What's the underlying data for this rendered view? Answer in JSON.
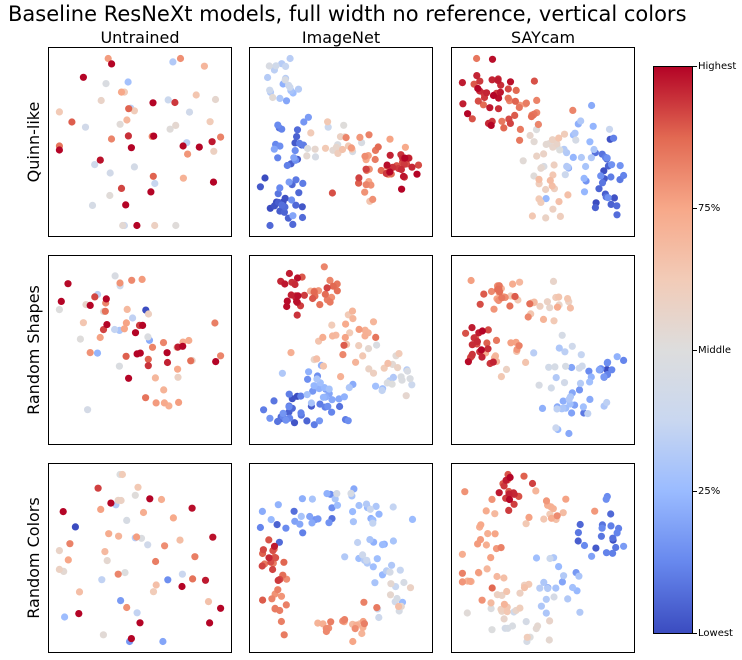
{
  "title": "Baseline ResNeXt models, full width no reference, vertical colors",
  "columns": [
    "Untrained",
    "ImageNet",
    "SAYcam"
  ],
  "rows": [
    "Quinn-like",
    "Random Shapes",
    "Random Colors"
  ],
  "colorbar": {
    "ticks": [
      {
        "label": "Highest",
        "value": 1.0
      },
      {
        "label": "75%",
        "value": 0.75
      },
      {
        "label": "Middle",
        "value": 0.5
      },
      {
        "label": "25%",
        "value": 0.25
      },
      {
        "label": "Lowest",
        "value": 0.0
      }
    ],
    "colormap": "coolwarm"
  },
  "chart_data": {
    "type": "scatter",
    "title": "Baseline ResNeXt models, full width no reference, vertical colors",
    "grid": false,
    "axes_ticks": "none",
    "colormap": "coolwarm",
    "colormap_stops": [
      "#3b4cc0",
      "#6788ee",
      "#9abbff",
      "#c9d7f0",
      "#dddddd",
      "#f2cbb7",
      "#f7a889",
      "#e26952",
      "#b40426"
    ],
    "color_value_range": [
      0,
      1
    ],
    "panels": [
      {
        "row": "Quinn-like",
        "column": "Untrained",
        "xlim": [
          0,
          1
        ],
        "ylim": [
          0,
          1
        ],
        "clusters": [
          {
            "x": 0.5,
            "y": 0.5,
            "sx": 0.3,
            "sy": 0.3,
            "n": 60,
            "v": 0.72,
            "vs": 0.25
          }
        ]
      },
      {
        "row": "Quinn-like",
        "column": "ImageNet",
        "xlim": [
          0,
          1
        ],
        "ylim": [
          0,
          1
        ],
        "clusters": [
          {
            "x": 0.15,
            "y": 0.85,
            "sx": 0.05,
            "sy": 0.08,
            "n": 20,
            "v": 0.35,
            "vs": 0.08
          },
          {
            "x": 0.2,
            "y": 0.42,
            "sx": 0.07,
            "sy": 0.15,
            "n": 30,
            "v": 0.12,
            "vs": 0.07
          },
          {
            "x": 0.15,
            "y": 0.13,
            "sx": 0.07,
            "sy": 0.05,
            "n": 18,
            "v": 0.04,
            "vs": 0.03
          },
          {
            "x": 0.5,
            "y": 0.47,
            "sx": 0.1,
            "sy": 0.07,
            "n": 25,
            "v": 0.55,
            "vs": 0.1
          },
          {
            "x": 0.72,
            "y": 0.33,
            "sx": 0.08,
            "sy": 0.08,
            "n": 25,
            "v": 0.82,
            "vs": 0.06
          },
          {
            "x": 0.88,
            "y": 0.36,
            "sx": 0.05,
            "sy": 0.05,
            "n": 22,
            "v": 0.95,
            "vs": 0.04
          }
        ]
      },
      {
        "row": "Quinn-like",
        "column": "SAYcam",
        "xlim": [
          0,
          1
        ],
        "ylim": [
          0,
          1
        ],
        "clusters": [
          {
            "x": 0.15,
            "y": 0.78,
            "sx": 0.08,
            "sy": 0.1,
            "n": 30,
            "v": 0.95,
            "vs": 0.04
          },
          {
            "x": 0.35,
            "y": 0.72,
            "sx": 0.1,
            "sy": 0.1,
            "n": 25,
            "v": 0.85,
            "vs": 0.06
          },
          {
            "x": 0.5,
            "y": 0.42,
            "sx": 0.08,
            "sy": 0.08,
            "n": 20,
            "v": 0.55,
            "vs": 0.06
          },
          {
            "x": 0.5,
            "y": 0.18,
            "sx": 0.07,
            "sy": 0.07,
            "n": 15,
            "v": 0.62,
            "vs": 0.04
          },
          {
            "x": 0.7,
            "y": 0.48,
            "sx": 0.08,
            "sy": 0.12,
            "n": 25,
            "v": 0.3,
            "vs": 0.06
          },
          {
            "x": 0.88,
            "y": 0.35,
            "sx": 0.06,
            "sy": 0.12,
            "n": 28,
            "v": 0.08,
            "vs": 0.05
          }
        ]
      },
      {
        "row": "Random Shapes",
        "column": "Untrained",
        "xlim": [
          0,
          1
        ],
        "ylim": [
          0,
          1
        ],
        "clusters": [
          {
            "x": 0.28,
            "y": 0.72,
            "sx": 0.16,
            "sy": 0.14,
            "n": 35,
            "v": 0.68,
            "vs": 0.28
          },
          {
            "x": 0.62,
            "y": 0.48,
            "sx": 0.2,
            "sy": 0.12,
            "n": 25,
            "v": 0.78,
            "vs": 0.2
          },
          {
            "x": 0.66,
            "y": 0.2,
            "sx": 0.07,
            "sy": 0.08,
            "n": 7,
            "v": 0.74,
            "vs": 0.1
          }
        ]
      },
      {
        "row": "Random Shapes",
        "column": "ImageNet",
        "xlim": [
          0,
          1
        ],
        "ylim": [
          0,
          1
        ],
        "clusters": [
          {
            "x": 0.22,
            "y": 0.82,
            "sx": 0.05,
            "sy": 0.07,
            "n": 16,
            "v": 0.97,
            "vs": 0.03
          },
          {
            "x": 0.4,
            "y": 0.85,
            "sx": 0.1,
            "sy": 0.06,
            "n": 20,
            "v": 0.85,
            "vs": 0.05
          },
          {
            "x": 0.5,
            "y": 0.58,
            "sx": 0.12,
            "sy": 0.08,
            "n": 28,
            "v": 0.7,
            "vs": 0.08
          },
          {
            "x": 0.78,
            "y": 0.48,
            "sx": 0.06,
            "sy": 0.06,
            "n": 10,
            "v": 0.58,
            "vs": 0.04
          },
          {
            "x": 0.82,
            "y": 0.32,
            "sx": 0.07,
            "sy": 0.06,
            "n": 12,
            "v": 0.4,
            "vs": 0.08
          },
          {
            "x": 0.42,
            "y": 0.27,
            "sx": 0.14,
            "sy": 0.06,
            "n": 25,
            "v": 0.2,
            "vs": 0.06
          },
          {
            "x": 0.15,
            "y": 0.18,
            "sx": 0.06,
            "sy": 0.05,
            "n": 14,
            "v": 0.07,
            "vs": 0.04
          },
          {
            "x": 0.35,
            "y": 0.12,
            "sx": 0.1,
            "sy": 0.04,
            "n": 18,
            "v": 0.1,
            "vs": 0.05
          }
        ]
      },
      {
        "row": "Random Shapes",
        "column": "SAYcam",
        "xlim": [
          0,
          1
        ],
        "ylim": [
          0,
          1
        ],
        "clusters": [
          {
            "x": 0.25,
            "y": 0.82,
            "sx": 0.08,
            "sy": 0.06,
            "n": 25,
            "v": 0.78,
            "vs": 0.08
          },
          {
            "x": 0.48,
            "y": 0.78,
            "sx": 0.1,
            "sy": 0.05,
            "n": 18,
            "v": 0.62,
            "vs": 0.06
          },
          {
            "x": 0.12,
            "y": 0.52,
            "sx": 0.05,
            "sy": 0.07,
            "n": 22,
            "v": 0.95,
            "vs": 0.04
          },
          {
            "x": 0.3,
            "y": 0.48,
            "sx": 0.08,
            "sy": 0.06,
            "n": 12,
            "v": 0.7,
            "vs": 0.06
          },
          {
            "x": 0.6,
            "y": 0.45,
            "sx": 0.08,
            "sy": 0.08,
            "n": 15,
            "v": 0.4,
            "vs": 0.06
          },
          {
            "x": 0.85,
            "y": 0.38,
            "sx": 0.06,
            "sy": 0.05,
            "n": 16,
            "v": 0.12,
            "vs": 0.05
          },
          {
            "x": 0.7,
            "y": 0.18,
            "sx": 0.1,
            "sy": 0.08,
            "n": 25,
            "v": 0.25,
            "vs": 0.06
          }
        ]
      },
      {
        "row": "Random Colors",
        "column": "Untrained",
        "xlim": [
          0,
          1
        ],
        "ylim": [
          0,
          1
        ],
        "clusters": [
          {
            "x": 0.5,
            "y": 0.5,
            "sx": 0.26,
            "sy": 0.27,
            "n": 60,
            "v": 0.7,
            "vs": 0.25
          }
        ]
      },
      {
        "row": "Random Colors",
        "column": "ImageNet",
        "xlim": [
          0,
          1
        ],
        "ylim": [
          0,
          1
        ],
        "clusters": [
          {
            "x": 0.08,
            "y": 0.48,
            "sx": 0.04,
            "sy": 0.08,
            "n": 16,
            "v": 0.92,
            "vs": 0.04
          },
          {
            "x": 0.12,
            "y": 0.25,
            "sx": 0.04,
            "sy": 0.08,
            "n": 14,
            "v": 0.85,
            "vs": 0.05
          },
          {
            "x": 0.3,
            "y": 0.75,
            "sx": 0.12,
            "sy": 0.08,
            "n": 25,
            "v": 0.15,
            "vs": 0.07
          },
          {
            "x": 0.6,
            "y": 0.78,
            "sx": 0.12,
            "sy": 0.08,
            "n": 18,
            "v": 0.3,
            "vs": 0.06
          },
          {
            "x": 0.72,
            "y": 0.5,
            "sx": 0.08,
            "sy": 0.1,
            "n": 18,
            "v": 0.3,
            "vs": 0.06
          },
          {
            "x": 0.85,
            "y": 0.25,
            "sx": 0.05,
            "sy": 0.07,
            "n": 14,
            "v": 0.45,
            "vs": 0.08
          },
          {
            "x": 0.55,
            "y": 0.1,
            "sx": 0.1,
            "sy": 0.05,
            "n": 20,
            "v": 0.75,
            "vs": 0.08
          }
        ]
      },
      {
        "row": "Random Colors",
        "column": "SAYcam",
        "xlim": [
          0,
          1
        ],
        "ylim": [
          0,
          1
        ],
        "clusters": [
          {
            "x": 0.32,
            "y": 0.88,
            "sx": 0.07,
            "sy": 0.05,
            "n": 18,
            "v": 0.92,
            "vs": 0.05
          },
          {
            "x": 0.55,
            "y": 0.75,
            "sx": 0.1,
            "sy": 0.06,
            "n": 15,
            "v": 0.72,
            "vs": 0.08
          },
          {
            "x": 0.12,
            "y": 0.55,
            "sx": 0.05,
            "sy": 0.15,
            "n": 25,
            "v": 0.75,
            "vs": 0.05
          },
          {
            "x": 0.28,
            "y": 0.3,
            "sx": 0.08,
            "sy": 0.08,
            "n": 15,
            "v": 0.65,
            "vs": 0.05
          },
          {
            "x": 0.35,
            "y": 0.12,
            "sx": 0.1,
            "sy": 0.05,
            "n": 18,
            "v": 0.52,
            "vs": 0.06
          },
          {
            "x": 0.6,
            "y": 0.35,
            "sx": 0.1,
            "sy": 0.1,
            "n": 20,
            "v": 0.3,
            "vs": 0.07
          },
          {
            "x": 0.85,
            "y": 0.6,
            "sx": 0.06,
            "sy": 0.12,
            "n": 22,
            "v": 0.08,
            "vs": 0.05
          }
        ]
      }
    ]
  }
}
